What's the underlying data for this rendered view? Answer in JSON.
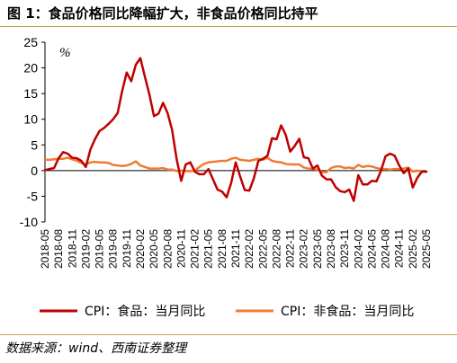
{
  "header": {
    "title": "图 1：食品价格同比降幅扩大，非食品价格同比持平"
  },
  "footer": {
    "source": "数据来源：wind、西南证券整理"
  },
  "colors": {
    "rule": "#c8a050",
    "food": "#c00000",
    "nonfood": "#ed7d31",
    "zero_line": "#000000"
  },
  "chart_data": {
    "type": "line",
    "unit_label": "%",
    "ylim": [
      -10,
      25
    ],
    "yticks": [
      -10,
      -5,
      0,
      5,
      10,
      15,
      20,
      25
    ],
    "xlabels": [
      "2018-05",
      "2018-08",
      "2018-11",
      "2019-02",
      "2019-05",
      "2019-08",
      "2019-11",
      "2020-02",
      "2020-05",
      "2020-08",
      "2020-11",
      "2021-02",
      "2021-05",
      "2021-08",
      "2021-11",
      "2022-02",
      "2022-05",
      "2022-08",
      "2022-11",
      "2023-02",
      "2023-05",
      "2023-08",
      "2023-11",
      "2024-02",
      "2024-05",
      "2024-08",
      "2024-11",
      "2025-02",
      "2025-05"
    ],
    "x": [
      "2018-05",
      "2018-06",
      "2018-07",
      "2018-08",
      "2018-09",
      "2018-10",
      "2018-11",
      "2018-12",
      "2019-01",
      "2019-02",
      "2019-03",
      "2019-04",
      "2019-05",
      "2019-06",
      "2019-07",
      "2019-08",
      "2019-09",
      "2019-10",
      "2019-11",
      "2019-12",
      "2020-01",
      "2020-02",
      "2020-03",
      "2020-04",
      "2020-05",
      "2020-06",
      "2020-07",
      "2020-08",
      "2020-09",
      "2020-10",
      "2020-11",
      "2020-12",
      "2021-01",
      "2021-02",
      "2021-03",
      "2021-04",
      "2021-05",
      "2021-06",
      "2021-07",
      "2021-08",
      "2021-09",
      "2021-10",
      "2021-11",
      "2021-12",
      "2022-01",
      "2022-02",
      "2022-03",
      "2022-04",
      "2022-05",
      "2022-06",
      "2022-07",
      "2022-08",
      "2022-09",
      "2022-10",
      "2022-11",
      "2022-12",
      "2023-01",
      "2023-02",
      "2023-03",
      "2023-04",
      "2023-05",
      "2023-06",
      "2023-07",
      "2023-08",
      "2023-09",
      "2023-10",
      "2023-11",
      "2023-12",
      "2024-01",
      "2024-02",
      "2024-03",
      "2024-04",
      "2024-05",
      "2024-06",
      "2024-07",
      "2024-08",
      "2024-09",
      "2024-10",
      "2024-11",
      "2024-12",
      "2025-01",
      "2025-02",
      "2025-03",
      "2025-04",
      "2025-05"
    ],
    "series": [
      {
        "name": "CPI：食品：当月同比",
        "color": "#c00000",
        "values": [
          0.1,
          0.3,
          0.5,
          2.4,
          3.6,
          3.3,
          2.5,
          2.4,
          1.9,
          0.7,
          4.1,
          6.1,
          7.7,
          8.3,
          9.1,
          10.0,
          11.2,
          15.5,
          19.1,
          17.4,
          20.6,
          21.9,
          18.3,
          14.8,
          10.6,
          11.1,
          13.2,
          11.2,
          7.9,
          2.2,
          -2.0,
          1.2,
          1.6,
          -0.2,
          -0.7,
          -0.7,
          0.3,
          -1.7,
          -3.7,
          -4.1,
          -5.2,
          -2.4,
          1.6,
          -1.2,
          -3.8,
          -3.9,
          -1.5,
          1.9,
          2.3,
          2.9,
          6.3,
          6.1,
          8.8,
          7.0,
          3.7,
          4.8,
          6.2,
          2.6,
          2.4,
          0.4,
          1.0,
          -1.0,
          -1.7,
          -1.7,
          -3.2,
          -4.0,
          -4.2,
          -3.7,
          -5.9,
          -0.9,
          -2.7,
          -2.7,
          -2.0,
          -2.1,
          0.0,
          2.8,
          3.3,
          2.9,
          1.0,
          -0.5,
          0.4,
          -3.3,
          -1.4,
          -0.2,
          -0.2
        ]
      },
      {
        "name": "CPI：非食品：当月同比",
        "color": "#ed7d31",
        "values": [
          2.1,
          2.1,
          2.2,
          2.3,
          2.3,
          2.5,
          2.2,
          1.9,
          1.5,
          1.2,
          1.6,
          1.7,
          1.6,
          1.6,
          1.5,
          1.1,
          1.0,
          0.9,
          1.0,
          1.3,
          1.8,
          1.0,
          0.7,
          0.4,
          0.4,
          0.4,
          0.5,
          0.2,
          0.2,
          -0.1,
          0.0,
          -0.1,
          -0.1,
          0.0,
          0.7,
          1.3,
          1.6,
          1.7,
          1.8,
          1.9,
          1.9,
          2.3,
          2.5,
          2.1,
          2.0,
          1.9,
          2.1,
          2.3,
          2.1,
          2.5,
          1.9,
          1.7,
          1.6,
          1.3,
          1.2,
          1.2,
          1.2,
          0.6,
          0.4,
          0.3,
          0.2,
          -0.3,
          -0.3,
          0.5,
          0.8,
          0.8,
          0.5,
          0.6,
          0.4,
          1.1,
          0.7,
          0.9,
          0.8,
          0.5,
          0.3,
          0.3,
          0.2,
          0.3,
          0.3,
          0.4,
          0.6,
          -0.2,
          0.0,
          -0.2,
          -0.2
        ]
      }
    ],
    "legend": {
      "position": "bottom",
      "items": [
        "CPI：食品：当月同比",
        "CPI：非食品：当月同比"
      ]
    },
    "grid": false
  }
}
